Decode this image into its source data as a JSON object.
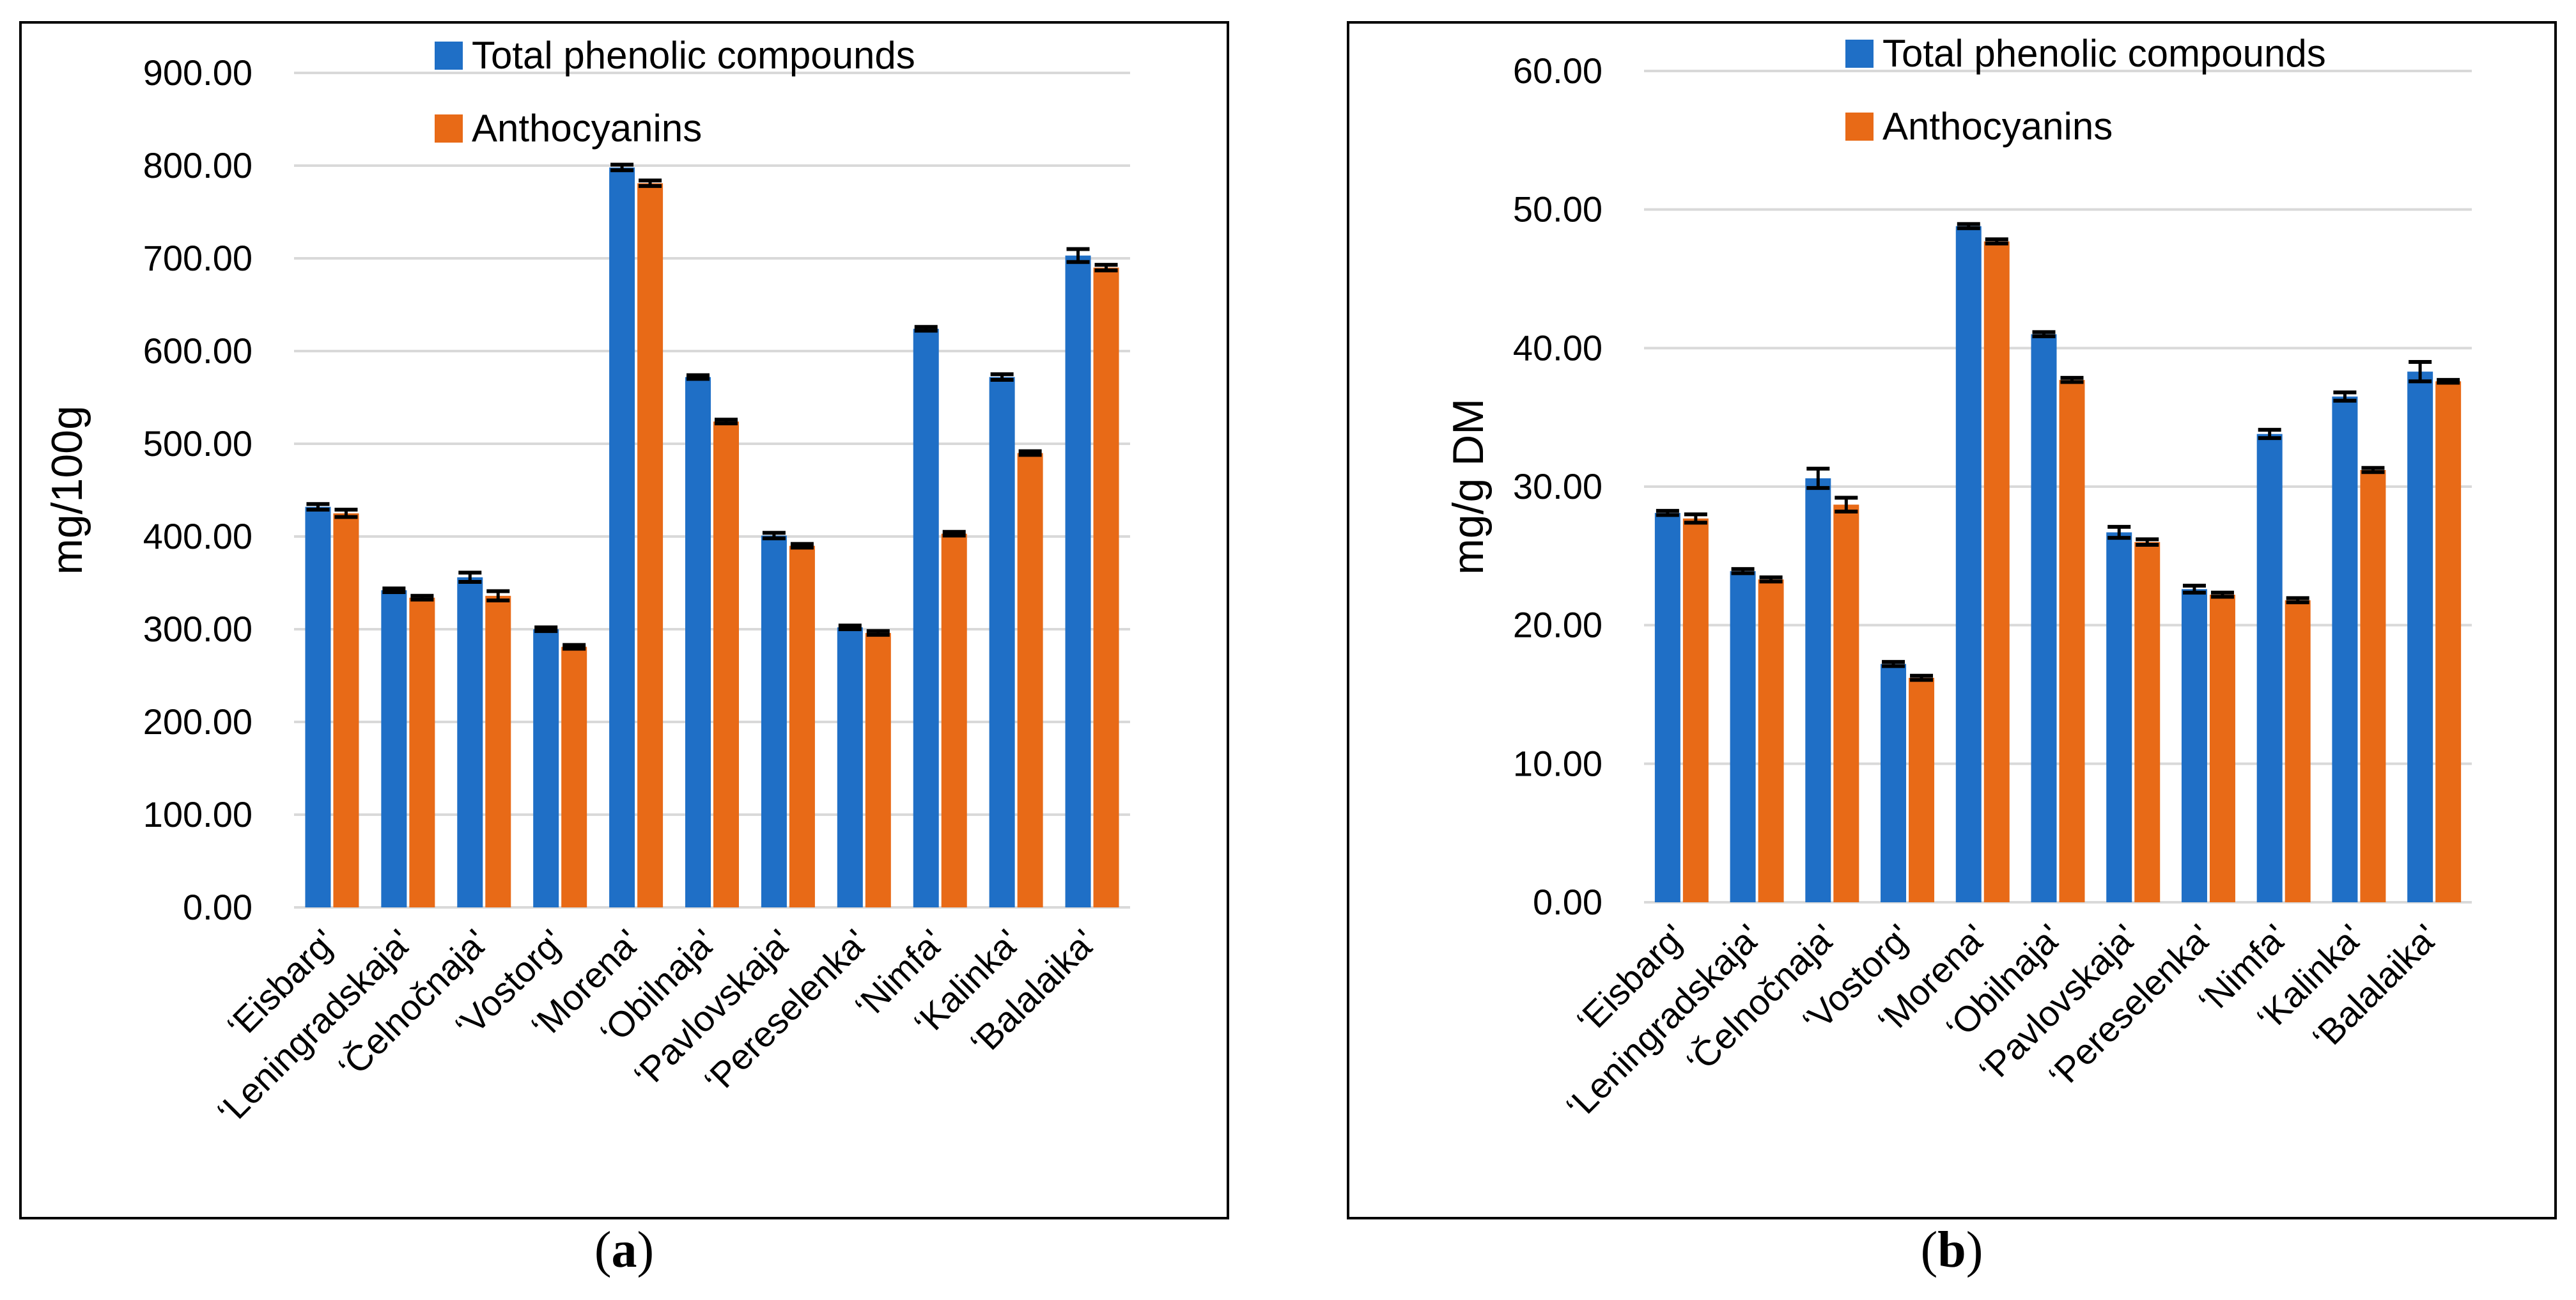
{
  "chart_data": [
    {
      "type": "bar",
      "panel_label": "a",
      "ylabel": "mg/100g",
      "xlabel": "",
      "ylim": [
        0,
        900
      ],
      "yticks": [
        "0.00",
        "100.00",
        "200.00",
        "300.00",
        "400.00",
        "500.00",
        "600.00",
        "700.00",
        "800.00",
        "900.00"
      ],
      "grid": true,
      "legend_position": "top-center",
      "categories": [
        "‘Eisbarg'",
        "‘Leningradskaja'",
        "‘Čelnočnaja'",
        "‘Vostorg'",
        "‘Morena'",
        "‘Obilnaja'",
        "‘Pavlovskaja'",
        "‘Pereselenka'",
        "‘Nimfa'",
        "‘Kalinka'",
        "‘Balalaika'"
      ],
      "series": [
        {
          "name": "Total phenolic compounds",
          "color": "#1f6fc6",
          "values": [
            432,
            342,
            356,
            300,
            798,
            572,
            401,
            302,
            624,
            572,
            703
          ],
          "errors": [
            3,
            2,
            5,
            2,
            3,
            2,
            3,
            2,
            2,
            3,
            7
          ]
        },
        {
          "name": "Anthocyanins",
          "color": "#e86a17",
          "values": [
            425,
            334,
            336,
            281,
            781,
            524,
            390,
            296,
            403,
            490,
            690
          ],
          "errors": [
            4,
            2,
            5,
            2,
            3,
            2,
            2,
            2,
            2,
            2,
            3
          ]
        }
      ]
    },
    {
      "type": "bar",
      "panel_label": "b",
      "ylabel": "mg/g DM",
      "xlabel": "",
      "ylim": [
        0,
        60
      ],
      "yticks": [
        "0.00",
        "10.00",
        "20.00",
        "30.00",
        "40.00",
        "50.00",
        "60.00"
      ],
      "grid": true,
      "legend_position": "top-center",
      "categories": [
        "‘Eisbarg'",
        "‘Leningradskaja'",
        "‘Čelnočnaja'",
        "‘Vostorg'",
        "‘Morena'",
        "‘Obilnaja'",
        "‘Pavlovskaja'",
        "‘Pereselenka'",
        "‘Nimfa'",
        "‘Kalinka'",
        "‘Balalaika'"
      ],
      "series": [
        {
          "name": "Total phenolic compounds",
          "color": "#1f6fc6",
          "values": [
            28.1,
            23.9,
            30.6,
            17.2,
            48.8,
            41.0,
            26.7,
            22.6,
            33.8,
            36.5,
            38.3
          ],
          "errors": [
            0.15,
            0.15,
            0.7,
            0.15,
            0.15,
            0.15,
            0.4,
            0.25,
            0.3,
            0.3,
            0.7
          ]
        },
        {
          "name": "Anthocyanins",
          "color": "#e86a17",
          "values": [
            27.7,
            23.3,
            28.7,
            16.2,
            47.7,
            37.7,
            26.0,
            22.2,
            21.8,
            31.2,
            37.6
          ],
          "errors": [
            0.3,
            0.15,
            0.5,
            0.15,
            0.15,
            0.15,
            0.2,
            0.15,
            0.15,
            0.15,
            0.1
          ]
        }
      ]
    }
  ]
}
